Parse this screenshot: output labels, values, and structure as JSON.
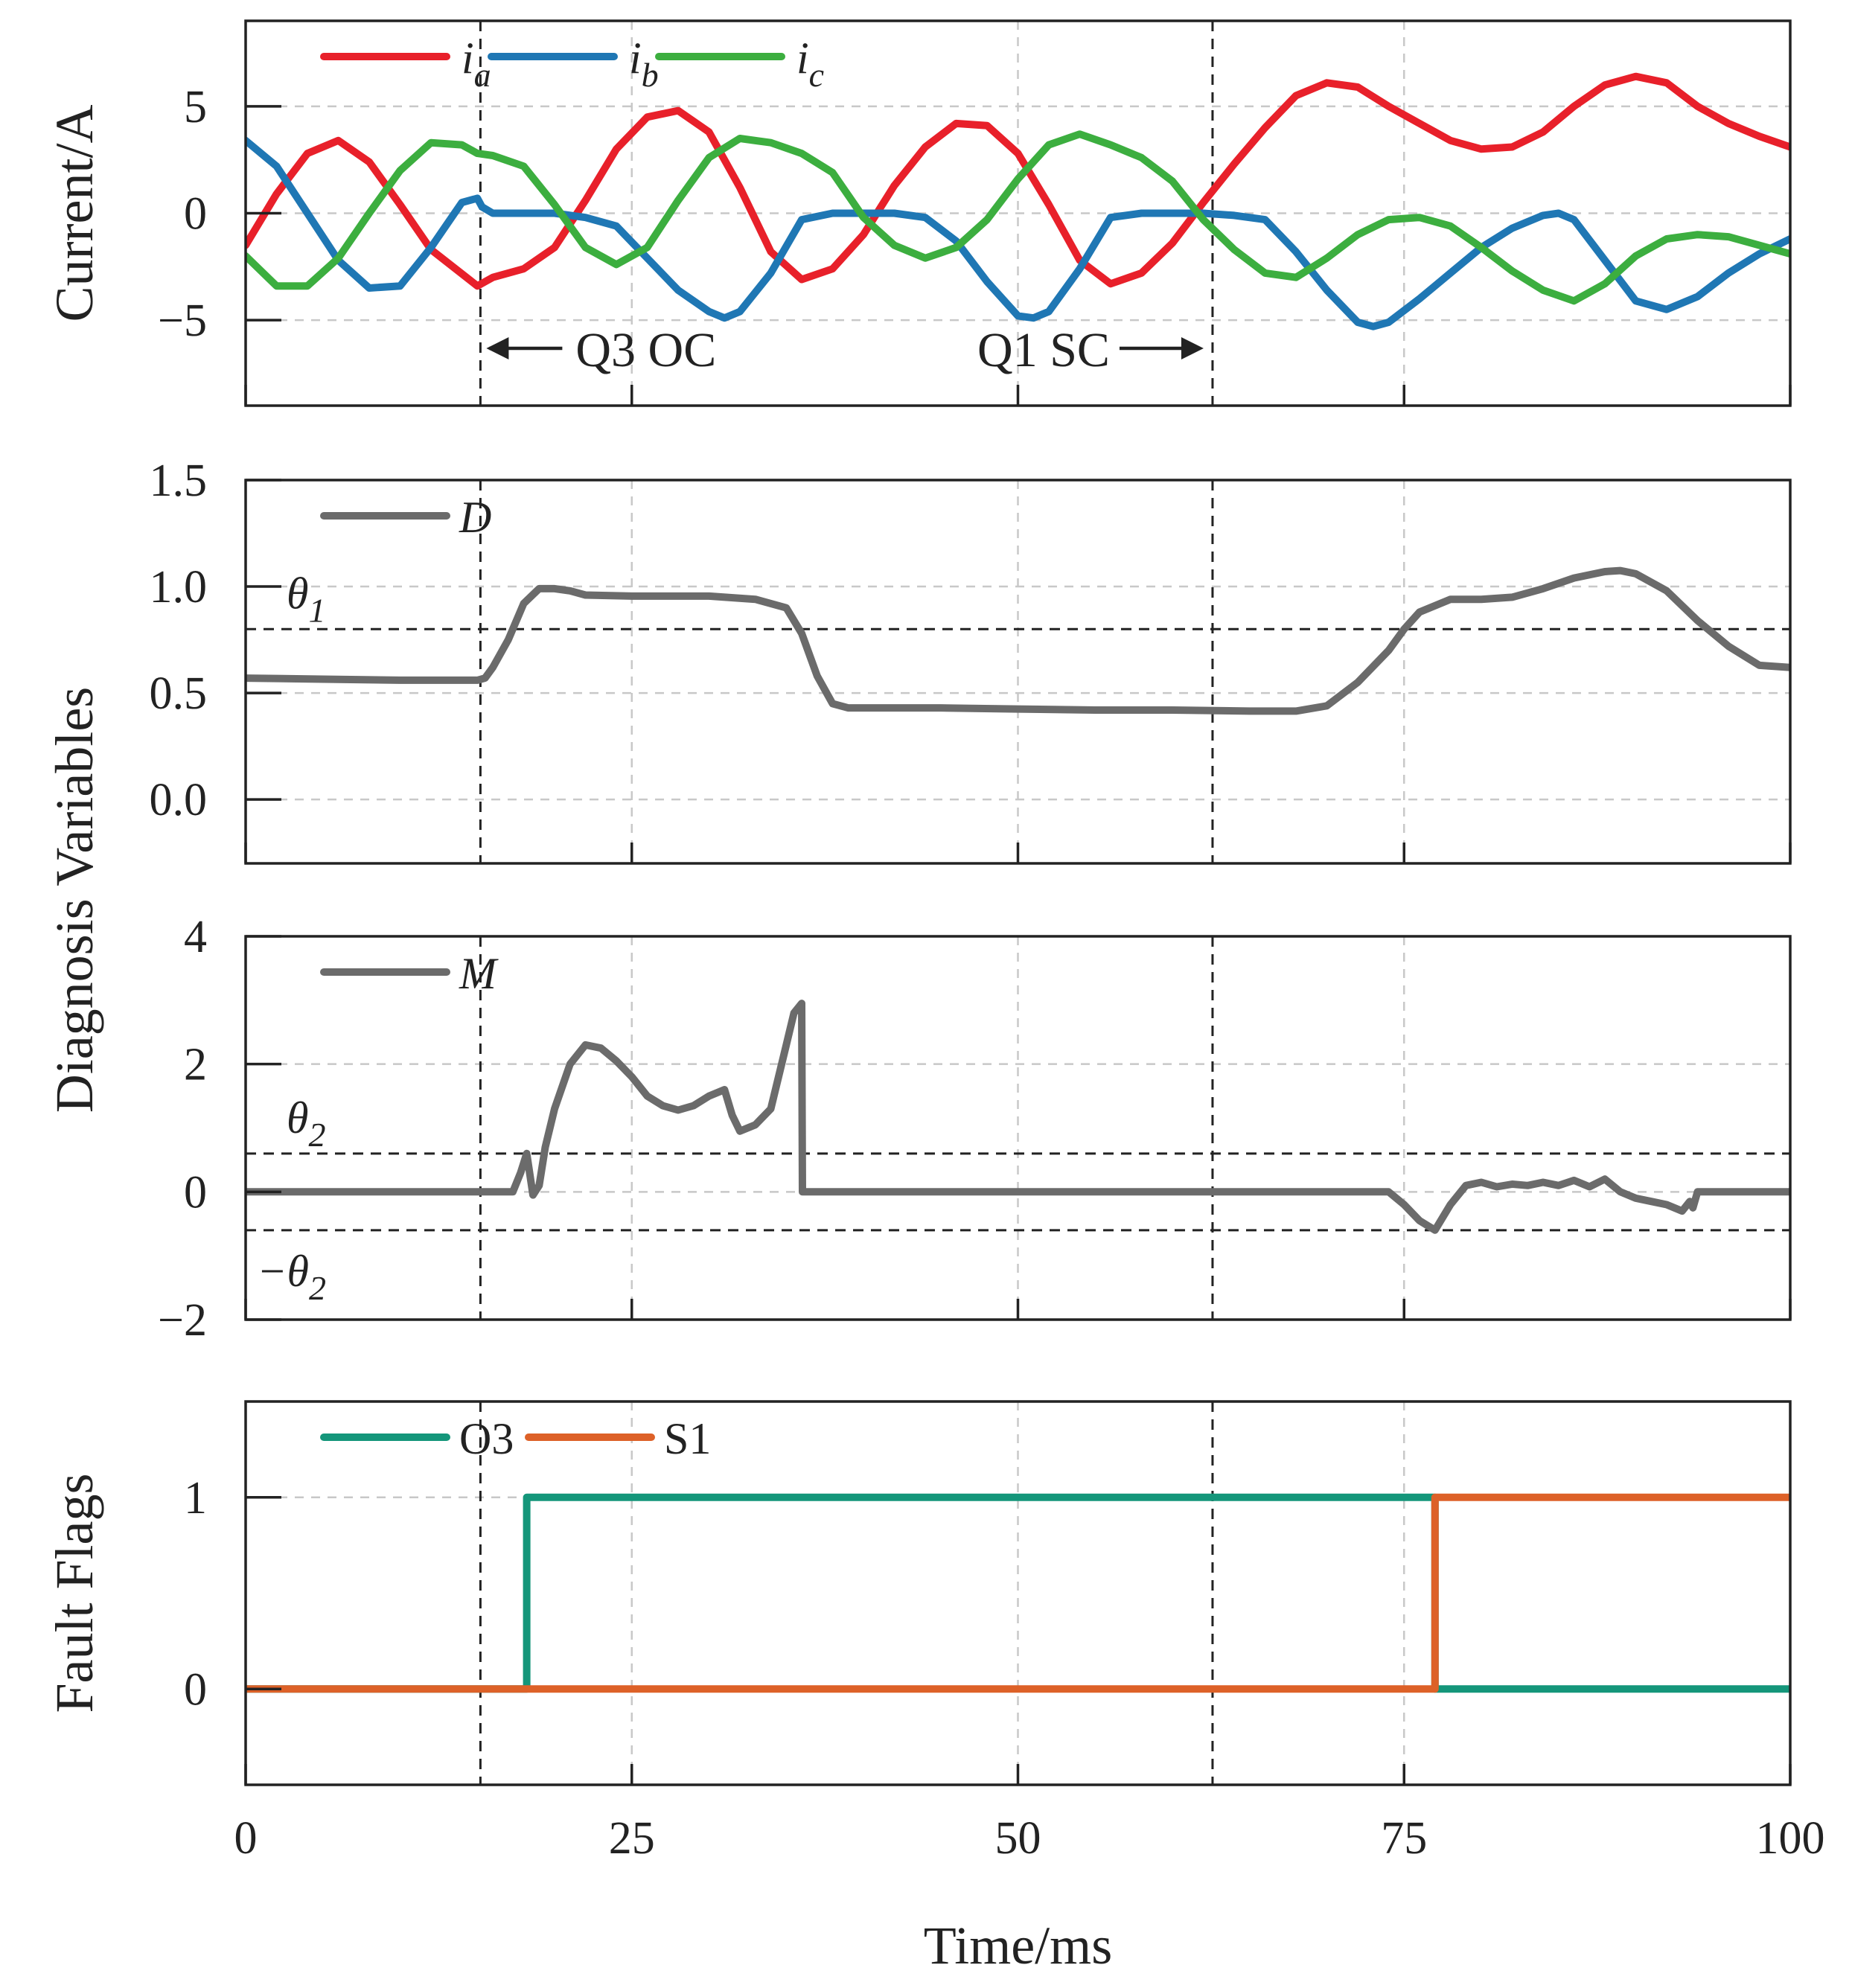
{
  "chart_data": [
    {
      "type": "line",
      "panel": "currents",
      "ylabel": "Current/A",
      "xlim": [
        0,
        100
      ],
      "ylim": [
        -9,
        9
      ],
      "yticks": [
        5,
        0,
        -5
      ],
      "ytick_labels": [
        "5",
        "0",
        "−5"
      ],
      "grid": "dashed horizontal at y ticks",
      "legend": {
        "position": "top-left"
      },
      "series": [
        {
          "name": "i_a",
          "label_main": "i",
          "label_sub": "a",
          "color": "#e8202a",
          "x": [
            0,
            2,
            4,
            6,
            8,
            10,
            12,
            15,
            16,
            18,
            20,
            22,
            24,
            26,
            28,
            30,
            32,
            34,
            36,
            38,
            40,
            42,
            44,
            46,
            48,
            50,
            52,
            54,
            56,
            58,
            60,
            62,
            64,
            66,
            68,
            70,
            72,
            74,
            76,
            78,
            80,
            82,
            84,
            86,
            88,
            90,
            92,
            94,
            96,
            98,
            100
          ],
          "y": [
            -1.5,
            0.9,
            2.8,
            3.4,
            2.4,
            0.4,
            -1.7,
            -3.4,
            -3,
            -2.6,
            -1.6,
            0.6,
            3,
            4.5,
            4.8,
            3.8,
            1.2,
            -1.8,
            -3.1,
            -2.6,
            -1,
            1.3,
            3.1,
            4.2,
            4.1,
            2.8,
            0.4,
            -2.2,
            -3.3,
            -2.8,
            -1.4,
            0.5,
            2.3,
            4,
            5.5,
            6.1,
            5.9,
            5,
            4.2,
            3.4,
            3,
            3.1,
            3.8,
            5,
            6,
            6.4,
            6.1,
            5,
            4.2,
            3.6,
            3.1
          ]
        },
        {
          "name": "i_b",
          "label_main": "i",
          "label_sub": "b",
          "color": "#1f77b4",
          "x": [
            0,
            2,
            4,
            6,
            8,
            10,
            12,
            14,
            15,
            15.3,
            16,
            20,
            22,
            24,
            26,
            28,
            30,
            31,
            32,
            34,
            36,
            38,
            40,
            42,
            44,
            46,
            48,
            50,
            51,
            52,
            54,
            56,
            58,
            60,
            62,
            64,
            66,
            68,
            70,
            72,
            73,
            74,
            76,
            78,
            80,
            82,
            84,
            85,
            86,
            88,
            90,
            92,
            94,
            96,
            98,
            100
          ],
          "y": [
            3.4,
            2.2,
            0,
            -2.2,
            -3.5,
            -3.4,
            -1.6,
            0.5,
            0.7,
            0.3,
            0,
            0,
            -0.2,
            -0.6,
            -2.1,
            -3.6,
            -4.6,
            -4.9,
            -4.6,
            -2.8,
            -0.3,
            0,
            0,
            0,
            -0.2,
            -1.3,
            -3.2,
            -4.8,
            -4.9,
            -4.6,
            -2.6,
            -0.2,
            0,
            0,
            0,
            -0.1,
            -0.3,
            -1.8,
            -3.6,
            -5.1,
            -5.3,
            -5.1,
            -4,
            -2.8,
            -1.6,
            -0.7,
            -0.1,
            0,
            -0.3,
            -2.2,
            -4.1,
            -4.5,
            -3.9,
            -2.8,
            -1.9,
            -1.2
          ]
        },
        {
          "name": "i_c",
          "label_main": "i",
          "label_sub": "c",
          "color": "#3cae3f",
          "x": [
            0,
            2,
            4,
            6,
            8,
            10,
            12,
            14,
            15,
            16,
            18,
            20,
            22,
            24,
            26,
            28,
            30,
            32,
            34,
            36,
            38,
            40,
            42,
            44,
            46,
            48,
            50,
            52,
            54,
            56,
            58,
            60,
            62,
            64,
            66,
            68,
            70,
            72,
            74,
            76,
            78,
            80,
            82,
            84,
            86,
            88,
            90,
            92,
            94,
            96,
            98,
            100
          ],
          "y": [
            -2,
            -3.4,
            -3.4,
            -2.1,
            0,
            2,
            3.3,
            3.2,
            2.8,
            2.7,
            2.2,
            0.4,
            -1.6,
            -2.4,
            -1.6,
            0.6,
            2.6,
            3.5,
            3.3,
            2.8,
            1.9,
            -0.2,
            -1.5,
            -2.1,
            -1.6,
            -0.3,
            1.6,
            3.2,
            3.7,
            3.2,
            2.6,
            1.5,
            -0.3,
            -1.7,
            -2.8,
            -3,
            -2.1,
            -1,
            -0.3,
            -0.2,
            -0.6,
            -1.6,
            -2.7,
            -3.6,
            -4.1,
            -3.3,
            -2,
            -1.2,
            -1,
            -1.1,
            -1.5,
            -1.9
          ]
        }
      ],
      "annotations": [
        {
          "text": "Q3 OC",
          "arrow": "left"
        },
        {
          "text": "Q1 SC",
          "arrow": "right"
        }
      ],
      "vlines": [
        15.2,
        62.6
      ]
    },
    {
      "type": "line",
      "panel": "D",
      "ylim": [
        -0.3,
        1.5
      ],
      "yticks": [
        1.5,
        1.0,
        0.5,
        0.0
      ],
      "ytick_labels": [
        "1.5",
        "1.0",
        "0.5",
        "0.0"
      ],
      "grid": "dashed horizontal at y ticks",
      "legend": {
        "position": "top-left"
      },
      "threshold": {
        "label_main": "θ",
        "label_sub": "1",
        "value": 0.8
      },
      "series": [
        {
          "name": "D",
          "label": "D",
          "color": "#6b6b6b",
          "x": [
            0,
            5,
            10,
            15,
            15.5,
            16,
            17,
            18,
            19,
            20,
            21,
            22,
            25,
            28,
            30,
            33,
            35,
            36,
            37,
            38,
            39,
            40,
            45,
            50,
            55,
            60,
            65,
            68,
            70,
            72,
            74,
            75,
            76,
            78,
            80,
            82,
            84,
            86,
            88,
            89,
            90,
            92,
            94,
            96,
            98,
            100
          ],
          "y": [
            0.57,
            0.565,
            0.56,
            0.56,
            0.57,
            0.62,
            0.75,
            0.92,
            0.99,
            0.99,
            0.98,
            0.96,
            0.955,
            0.955,
            0.955,
            0.94,
            0.9,
            0.78,
            0.58,
            0.45,
            0.43,
            0.43,
            0.43,
            0.425,
            0.42,
            0.42,
            0.415,
            0.415,
            0.44,
            0.55,
            0.7,
            0.8,
            0.88,
            0.94,
            0.94,
            0.95,
            0.99,
            1.04,
            1.07,
            1.075,
            1.06,
            0.98,
            0.84,
            0.72,
            0.63,
            0.62
          ]
        }
      ],
      "vlines": [
        15.2,
        62.6
      ]
    },
    {
      "type": "line",
      "panel": "M",
      "ylabel_shared": "Diagnosis Variables",
      "ylim": [
        -2,
        4
      ],
      "yticks": [
        4,
        2,
        0,
        -2
      ],
      "ytick_labels": [
        "4",
        "2",
        "0",
        "−2"
      ],
      "grid": "dashed horizontal at y ticks",
      "legend": {
        "position": "top-left"
      },
      "thresholds": [
        {
          "label_main": "θ",
          "label_sub": "2",
          "value": 0.6
        },
        {
          "label_main": "−θ",
          "label_sub": "2",
          "value": -0.6
        }
      ],
      "series": [
        {
          "name": "M",
          "label": "M",
          "color": "#6b6b6b",
          "x": [
            0,
            17.3,
            17.8,
            18.2,
            18.6,
            19,
            19.4,
            20,
            21,
            22,
            23,
            24,
            25,
            26,
            27,
            28,
            29,
            30,
            31,
            31.5,
            32,
            33,
            34,
            35,
            35.5,
            36,
            36.05,
            40,
            60,
            74,
            75,
            76,
            77,
            78,
            79,
            80,
            81,
            82,
            83,
            84,
            85,
            86,
            87,
            88,
            89,
            90,
            91,
            92,
            93,
            93.5,
            93.7,
            94,
            100
          ],
          "y": [
            0,
            0,
            0.3,
            0.6,
            -0.05,
            0.1,
            0.7,
            1.3,
            2,
            2.3,
            2.25,
            2.05,
            1.8,
            1.5,
            1.35,
            1.28,
            1.35,
            1.5,
            1.6,
            1.2,
            0.95,
            1.05,
            1.3,
            2.3,
            2.8,
            2.95,
            0,
            0,
            0,
            0,
            -0.2,
            -0.45,
            -0.6,
            -0.2,
            0.1,
            0.15,
            0.08,
            0.12,
            0.1,
            0.15,
            0.1,
            0.18,
            0.08,
            0.2,
            0,
            -0.1,
            -0.15,
            -0.2,
            -0.3,
            -0.15,
            -0.25,
            0,
            0
          ]
        }
      ],
      "vlines": [
        15.2,
        62.6
      ]
    },
    {
      "type": "line",
      "panel": "flags",
      "ylabel": "Fault Flags",
      "xlabel": "Time/ms",
      "xlim": [
        0,
        100
      ],
      "xticks": [
        0,
        25,
        50,
        75,
        100
      ],
      "xtick_labels": [
        "0",
        "25",
        "50",
        "75",
        "100"
      ],
      "ylim": [
        -0.5,
        1.5
      ],
      "yticks": [
        1,
        0
      ],
      "ytick_labels": [
        "1",
        "0"
      ],
      "grid": "dashed horizontal at y ticks",
      "legend": {
        "position": "top-left"
      },
      "series": [
        {
          "name": "O3",
          "label": "O3",
          "color": "#14967a",
          "x": [
            0,
            18.2,
            18.2,
            77,
            77,
            100
          ],
          "y": [
            0,
            0,
            1,
            1,
            0,
            0
          ]
        },
        {
          "name": "S1",
          "label": "S1",
          "color": "#dd6128",
          "x": [
            0,
            77,
            77,
            100
          ],
          "y": [
            0,
            0,
            1,
            1
          ]
        }
      ],
      "vlines": [
        15.2,
        62.6
      ]
    }
  ]
}
